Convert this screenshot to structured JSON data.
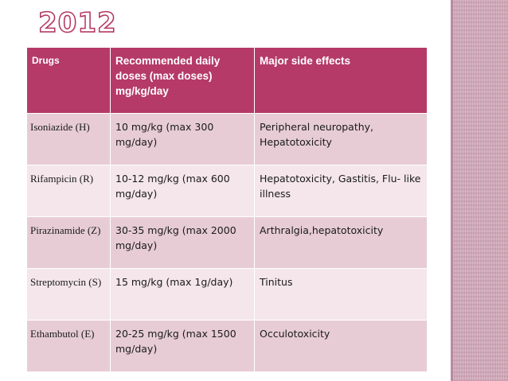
{
  "slide": {
    "title": "2012",
    "colors": {
      "header_bg": "#b53a67",
      "row_odd_bg": "#e7ccd6",
      "row_even_bg": "#f4e6eb",
      "title_outline": "#b4365f",
      "side_band": "#cfa9b8"
    }
  },
  "table": {
    "headers": [
      "Drugs",
      "Recommended daily doses (max doses) mg/kg/day",
      "Major side effects"
    ],
    "rows": [
      {
        "drug": "Isoniazide (H)",
        "dose": "10 mg/kg (max 300 mg/day)",
        "effects": "Peripheral neuropathy, Hepatotoxicity"
      },
      {
        "drug": "Rifampicin (R)",
        "dose": "10-12 mg/kg (max 600 mg/day)",
        "effects": "Hepatotoxicity, Gastitis, Flu- like illness"
      },
      {
        "drug": "Pirazinamide (Z)",
        "dose": "30-35 mg/kg (max 2000 mg/day)",
        "effects": "Arthralgia,hepatotoxicity"
      },
      {
        "drug": "Streptomycin (S)",
        "dose": "15 mg/kg (max 1g/day)",
        "effects": "Tinitus"
      },
      {
        "drug": "Ethambutol (E)",
        "dose": "20-25 mg/kg (max 1500 mg/day)",
        "effects": "Occulotoxicity"
      }
    ]
  }
}
